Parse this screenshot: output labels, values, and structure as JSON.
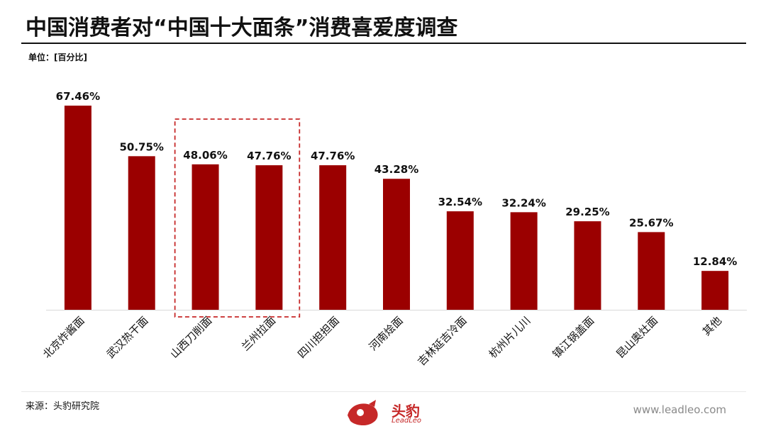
{
  "header": {
    "title": "中国消费者对“中国十大面条”消费喜爱度调查",
    "unit": "单位：[百分比]"
  },
  "footer": {
    "source": "来源：头豹研究院",
    "website": "www.leadleo.com",
    "logo_text": "头豹",
    "logo_sub": "LeadLeo"
  },
  "colors": {
    "bar": "#9b0000",
    "highlight_border": "#c62828",
    "text": "#111111"
  },
  "chart_data": {
    "type": "bar",
    "categories": [
      "北京炸酱面",
      "武汉热干面",
      "山西刀削面",
      "兰州拉面",
      "四川担担面",
      "河南烩面",
      "吉林延吉冷面",
      "杭州片儿川",
      "镇江锅盖面",
      "昆山奥灶面",
      "其他"
    ],
    "values": [
      67.46,
      50.75,
      48.06,
      47.76,
      47.76,
      43.28,
      32.54,
      32.24,
      29.25,
      25.67,
      12.84
    ],
    "value_labels": [
      "67.46%",
      "50.75%",
      "48.06%",
      "47.76%",
      "47.76%",
      "43.28%",
      "32.54%",
      "32.24%",
      "29.25%",
      "25.67%",
      "12.84%"
    ],
    "title": "",
    "xlabel": "",
    "ylabel": "",
    "ylim": [
      0,
      67.46
    ],
    "grid": false,
    "highlighted_categories": [
      "山西刀削面",
      "兰州拉面"
    ]
  }
}
